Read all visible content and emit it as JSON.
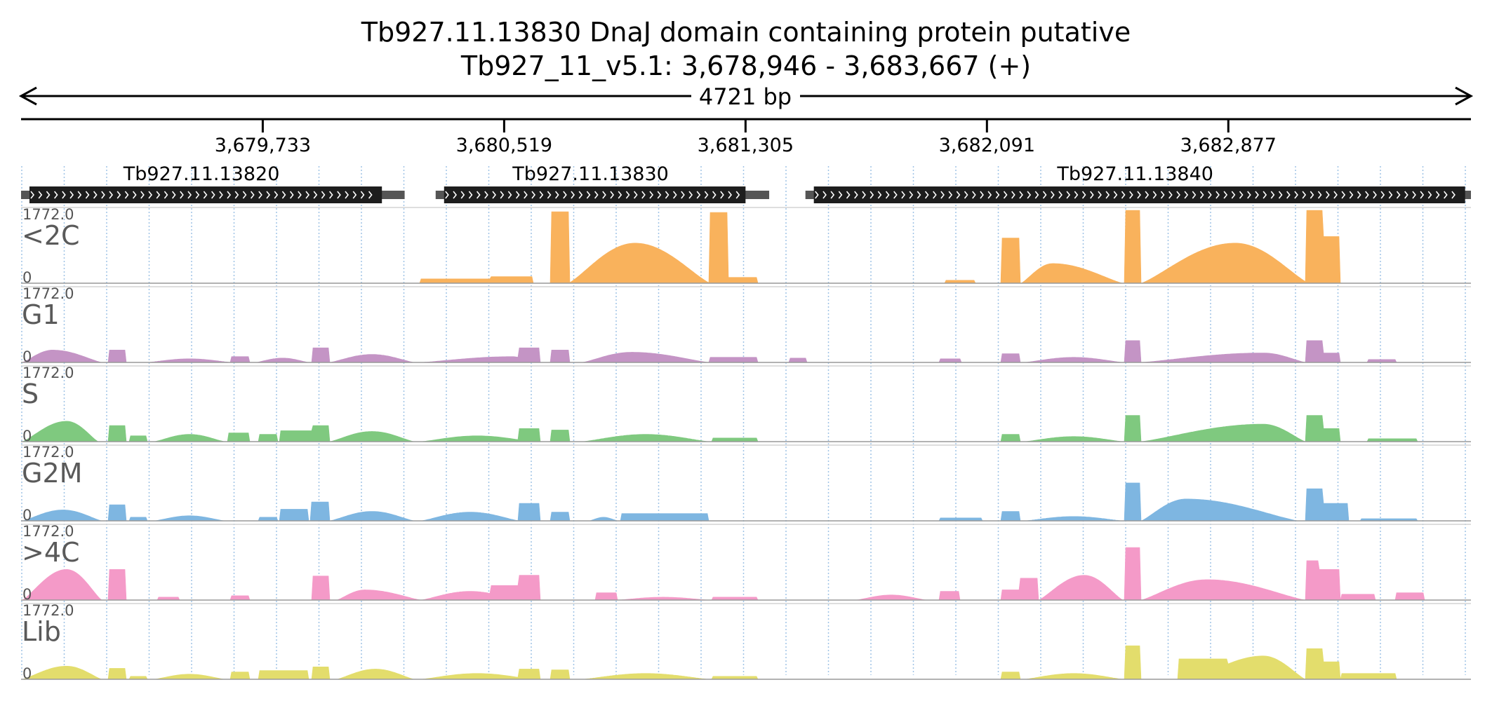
{
  "title": {
    "line1": "Tb927.11.13830  DnaJ domain containing protein  putative",
    "line2": "Tb927_11_v5.1: 3,678,946 - 3,683,667 (+)"
  },
  "scale_label": "4721 bp",
  "chart_data": {
    "type": "area",
    "region": {
      "chrom": "Tb927_11_v5.1",
      "start": 3678946,
      "end": 3683667,
      "strand": "+"
    },
    "tick_labels": [
      {
        "pos": 3679733,
        "label": "3,679,733"
      },
      {
        "pos": 3680519,
        "label": "3,680,519"
      },
      {
        "pos": 3681305,
        "label": "3,681,305"
      },
      {
        "pos": 3682091,
        "label": "3,682,091"
      },
      {
        "pos": 3682877,
        "label": "3,682,877"
      }
    ],
    "genes": [
      {
        "name": "Tb927.11.13820",
        "start": 3678946,
        "end": 3680195,
        "cds_end": 3680121
      },
      {
        "name": "Tb927.11.13830",
        "start": 3680296,
        "end": 3681382,
        "cds_end": 3681305
      },
      {
        "name": "Tb927.11.13840",
        "start": 3681500,
        "end": 3683667,
        "cds_end": 3683648
      }
    ],
    "ylim": [
      0,
      1772.0
    ],
    "y_max_label": "1772.0",
    "y_min_label": "0",
    "tracks": [
      {
        "name": "<2C",
        "color": "#f9b25c",
        "shape": "c2"
      },
      {
        "name": "G1",
        "color": "#c494c5",
        "shape": "g1"
      },
      {
        "name": "S",
        "color": "#7fc97f",
        "shape": "s"
      },
      {
        "name": "G2M",
        "color": "#7eb6e1",
        "shape": "g2m"
      },
      {
        "name": ">4C",
        "color": "#f49ac8",
        "shape": "c4"
      },
      {
        "name": "Lib",
        "color": "#e3dd6c",
        "shape": "lib"
      }
    ]
  }
}
